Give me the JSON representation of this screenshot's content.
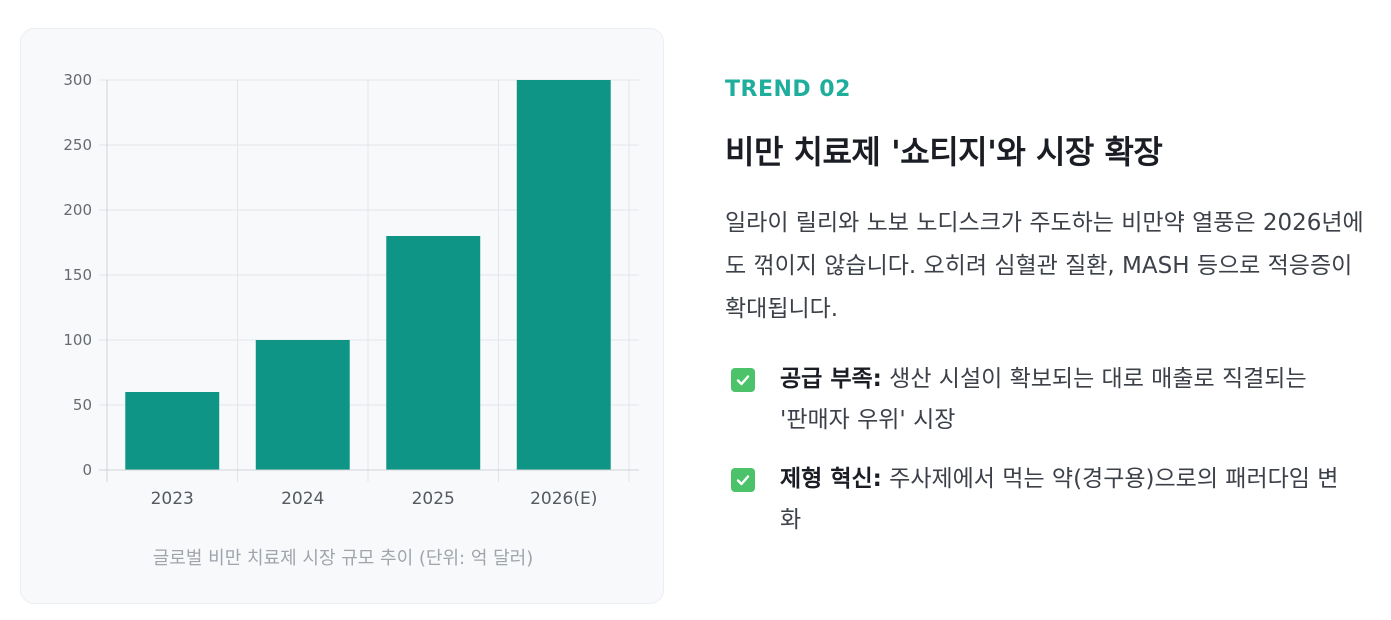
{
  "chart_data": {
    "type": "bar",
    "categories": [
      "2023",
      "2024",
      "2025",
      "2026(E)"
    ],
    "values": [
      60,
      100,
      180,
      300
    ],
    "yticks": [
      0,
      50,
      100,
      150,
      200,
      250,
      300
    ],
    "ylim": [
      0,
      300
    ],
    "grid": true,
    "bar_color": "#0e9585",
    "caption": "글로벌 비만 치료제 시장 규모 추이 (단위: 억 달러)"
  },
  "panel": {
    "trend_label": "TREND 02",
    "headline": "비만 치료제 '쇼티지'와 시장 확장",
    "description": "일라이 릴리와 노보 노디스크가 주도하는 비만약 열풍은 2026년에도 꺾이지 않습니다. 오히려 심혈관 질환, MASH 등으로 적응증이 확대됩니다.",
    "bullets": [
      {
        "icon": "check-mark-icon",
        "title": "공급 부족:",
        "text": " 생산 시설이 확보되는 대로 매출로 직결되는 '판매자 우위' 시장"
      },
      {
        "icon": "check-mark-icon",
        "title": "제형 혁신:",
        "text": " 주사제에서 먹는 약(경구용)으로의 패러다임 변화"
      }
    ]
  },
  "colors": {
    "accent": "#1fae9c",
    "bar": "#0e9585",
    "check": "#4cc36a"
  }
}
